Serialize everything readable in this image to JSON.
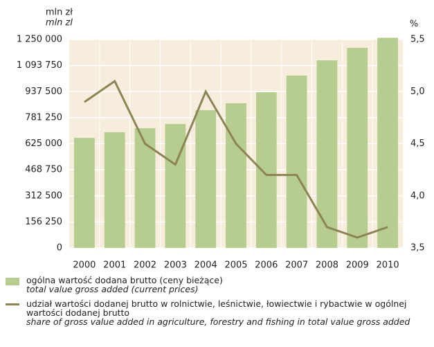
{
  "chart_data": {
    "type": "bar-line",
    "y_label": "mln zł",
    "y_label_en": "mln zl",
    "y2_label": "%",
    "categories": [
      "2000",
      "2001",
      "2002",
      "2003",
      "2004",
      "2005",
      "2006",
      "2007",
      "2008",
      "2009",
      "2010"
    ],
    "series": [
      {
        "name": "ogólna wartość dodana brutto (ceny bieżące)",
        "name_en": "total value gross added (current prices)",
        "type": "bar",
        "color": "#b6cd8f",
        "values": [
          660000,
          694000,
          718000,
          743000,
          826000,
          868000,
          934000,
          1034000,
          1125000,
          1200000,
          1260000
        ]
      },
      {
        "name": "udział wartości dodanej brutto w rolnictwie, leśnictwie, łowiectwie i rybactwie w ogólnej wartości dodanej brutto",
        "name_en": "share of gross value added in agriculture,  forestry and fishing in total value gross  added",
        "type": "line",
        "axis": "y2",
        "color": "#8c8456",
        "values": [
          4.9,
          5.1,
          4.5,
          4.3,
          5.0,
          4.5,
          4.2,
          4.2,
          3.7,
          3.6,
          3.7
        ]
      }
    ],
    "ylim": [
      0,
      1250000
    ],
    "yticks": [
      0,
      {
        "value": 156250,
        "label": "156 250"
      },
      {
        "value": 312500,
        "label": "312 500"
      },
      {
        "value": 468750,
        "label": "468 750"
      },
      {
        "value": 625000,
        "label": "625 000"
      },
      {
        "value": 781250,
        "label": "781 250"
      },
      {
        "value": 937500,
        "label": "937 500"
      },
      {
        "value": 1093750,
        "label": "1 093 750"
      },
      {
        "value": 1250000,
        "label": "1 250 000"
      }
    ],
    "y2lim": [
      3.5,
      5.5
    ],
    "y2ticks": [
      {
        "value": 3.5,
        "label": "3,5"
      },
      {
        "value": 4.0,
        "label": "4,0"
      },
      {
        "value": 4.5,
        "label": "4,5"
      },
      {
        "value": 5.0,
        "label": "5,0"
      },
      {
        "value": 5.5,
        "label": "5,5"
      }
    ],
    "grid": true
  }
}
